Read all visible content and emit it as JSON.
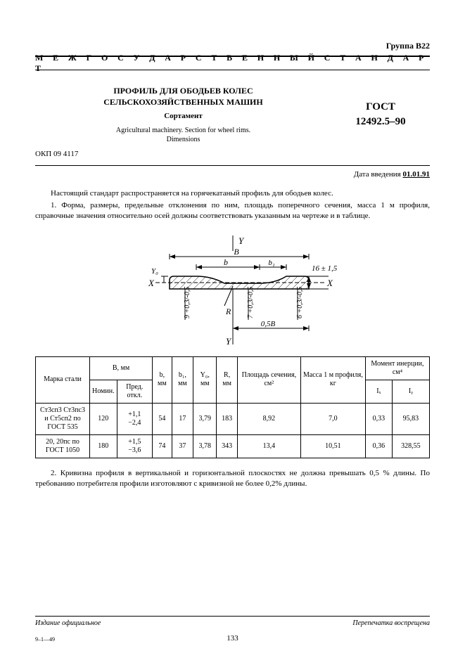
{
  "group": "Группа В22",
  "banner": "М Е Ж Г О С У Д А Р С Т В Е Н Н Ы Й   С Т А Н Д А Р Т",
  "title_ru_line1": "ПРОФИЛЬ ДЛЯ ОБОДЬЕВ КОЛЕС",
  "title_ru_line2": "СЕЛЬСКОХОЗЯЙСТВЕННЫХ МАШИН",
  "subtitle": "Сортамент",
  "title_en_line1": "Agricultural machinery.  Section for wheel rims.",
  "title_en_line2": "Dimensions",
  "gost_label": "ГОСТ",
  "gost_no": "12492.5–90",
  "okp": "ОКП 09 4117",
  "date_label": "Дата введения ",
  "date_value": "01.01.91",
  "para1": "Настоящий стандарт распространяется на горячекатаный профиль для ободьев колес.",
  "para2": "1. Форма, размеры, предельные отклонения по ним, площадь поперечного сечения, масса 1 м профиля, справочные значения относительно осей должны соответствовать указанным на чертеже и в таблице.",
  "fig": {
    "Y": "Y",
    "X": "X",
    "B": "B",
    "b": "b",
    "b1": "b₁",
    "R": "R",
    "Y0": "Y₀",
    "hB": "0,5B",
    "t16": "16 ± 1,5",
    "d9": "9⁺⁰ᵧ₃₂₅",
    "d7": "7⁺⁰ᵧ₃₂₅",
    "d6": "6⁺⁰ᵧ₃₂₅"
  },
  "headers": {
    "steel": "Марка стали",
    "Bmm": "B, мм",
    "nom": "Номин.",
    "tol": "Пред. откл.",
    "bmm": "b, мм",
    "b1mm": "b₁, мм",
    "Y0mm": "Y₀, мм",
    "Rmm": "R, мм",
    "area": "Площадь сечения, см²",
    "mass": "Масса 1 м профиля, кг",
    "moment": "Момент инерции, см⁴",
    "Ix": "Iₓ",
    "Iy": "Iᵧ"
  },
  "rows": [
    {
      "steel": "Ст3сп3 Ст3пс3 и Ст5сп2 по ГОСТ 535",
      "Bnom": "120",
      "Btol_plus": "+1,1",
      "Btol_minus": "−2,4",
      "b": "54",
      "b1": "17",
      "Y0": "3,79",
      "R": "183",
      "area": "8,92",
      "mass": "7,0",
      "Ix": "0,33",
      "Iy": "95,83"
    },
    {
      "steel": "20, 20пс по ГОСТ 1050",
      "Bnom": "180",
      "Btol_plus": "+1,5",
      "Btol_minus": "−3,6",
      "b": "74",
      "b1": "37",
      "Y0": "3,78",
      "R": "343",
      "area": "13,4",
      "mass": "10,51",
      "Ix": "0,36",
      "Iy": "328,55"
    }
  ],
  "para3": "2. Кривизна профиля в вертикальной и горизонтальной плоскостях не должна превышать 0,5 % длины. По требованию потребителя профили изготовляют с кривизной не более 0,2% длины.",
  "footer_left": "Издание официальное",
  "footer_right": "Перепечатка воспрещена",
  "sig": "9–1—49",
  "pageno": "133",
  "svg_style": {
    "stroke": "#000000",
    "fill": "none",
    "font_size_axis": 13,
    "font_size_dim": 10
  }
}
